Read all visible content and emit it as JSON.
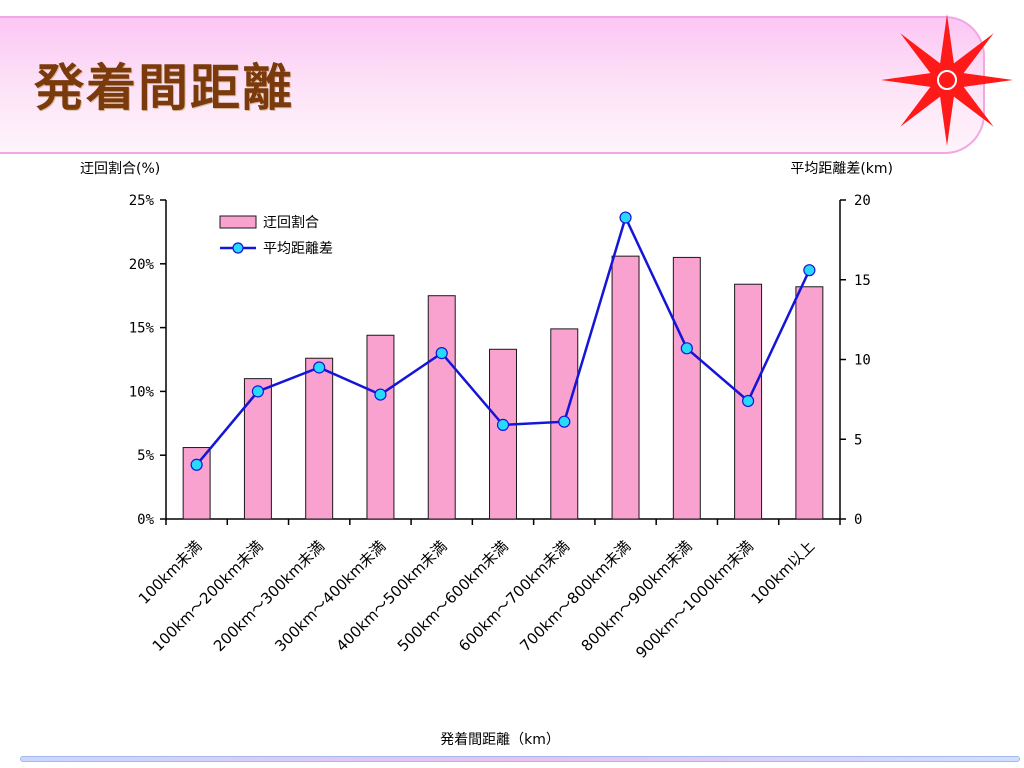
{
  "page": {
    "title": "発着間距離"
  },
  "colors": {
    "bar_fill": "#f9a2cf",
    "bar_stroke": "#1a1a1a",
    "line": "#1515d8",
    "marker_fill": "#29d9f9",
    "title_text": "#7b3a0c",
    "logo": "#ff1a1a"
  },
  "chart_data": {
    "type": "bar",
    "xlabel": "発着間距離（km）",
    "ylabel_left": "迂回割合(%)",
    "ylabel_right": "平均距離差(km)",
    "categories": [
      "100km未満",
      "100km～200km未満",
      "200km～300km未満",
      "300km～400km未満",
      "400km～500km未満",
      "500km～600km未満",
      "600km～700km未満",
      "700km～800km未満",
      "800km～900km未満",
      "900km～1000km未満",
      "100km以上"
    ],
    "ylim_left": [
      0,
      25
    ],
    "yticks_left": [
      "0%",
      "5%",
      "10%",
      "15%",
      "20%",
      "25%"
    ],
    "ylim_right": [
      0,
      20
    ],
    "yticks_right": [
      "0",
      "5",
      "10",
      "15",
      "20"
    ],
    "legend_position": "top-left",
    "series": [
      {
        "name": "迂回割合",
        "type": "bar",
        "axis": "left",
        "values": [
          5.6,
          11.0,
          12.6,
          14.4,
          17.5,
          13.3,
          14.9,
          20.6,
          20.5,
          18.4,
          18.2
        ]
      },
      {
        "name": "平均距離差",
        "type": "line",
        "axis": "right",
        "values": [
          3.4,
          8.0,
          9.5,
          7.8,
          10.4,
          5.9,
          6.1,
          18.9,
          10.7,
          7.4,
          15.6
        ]
      }
    ]
  }
}
